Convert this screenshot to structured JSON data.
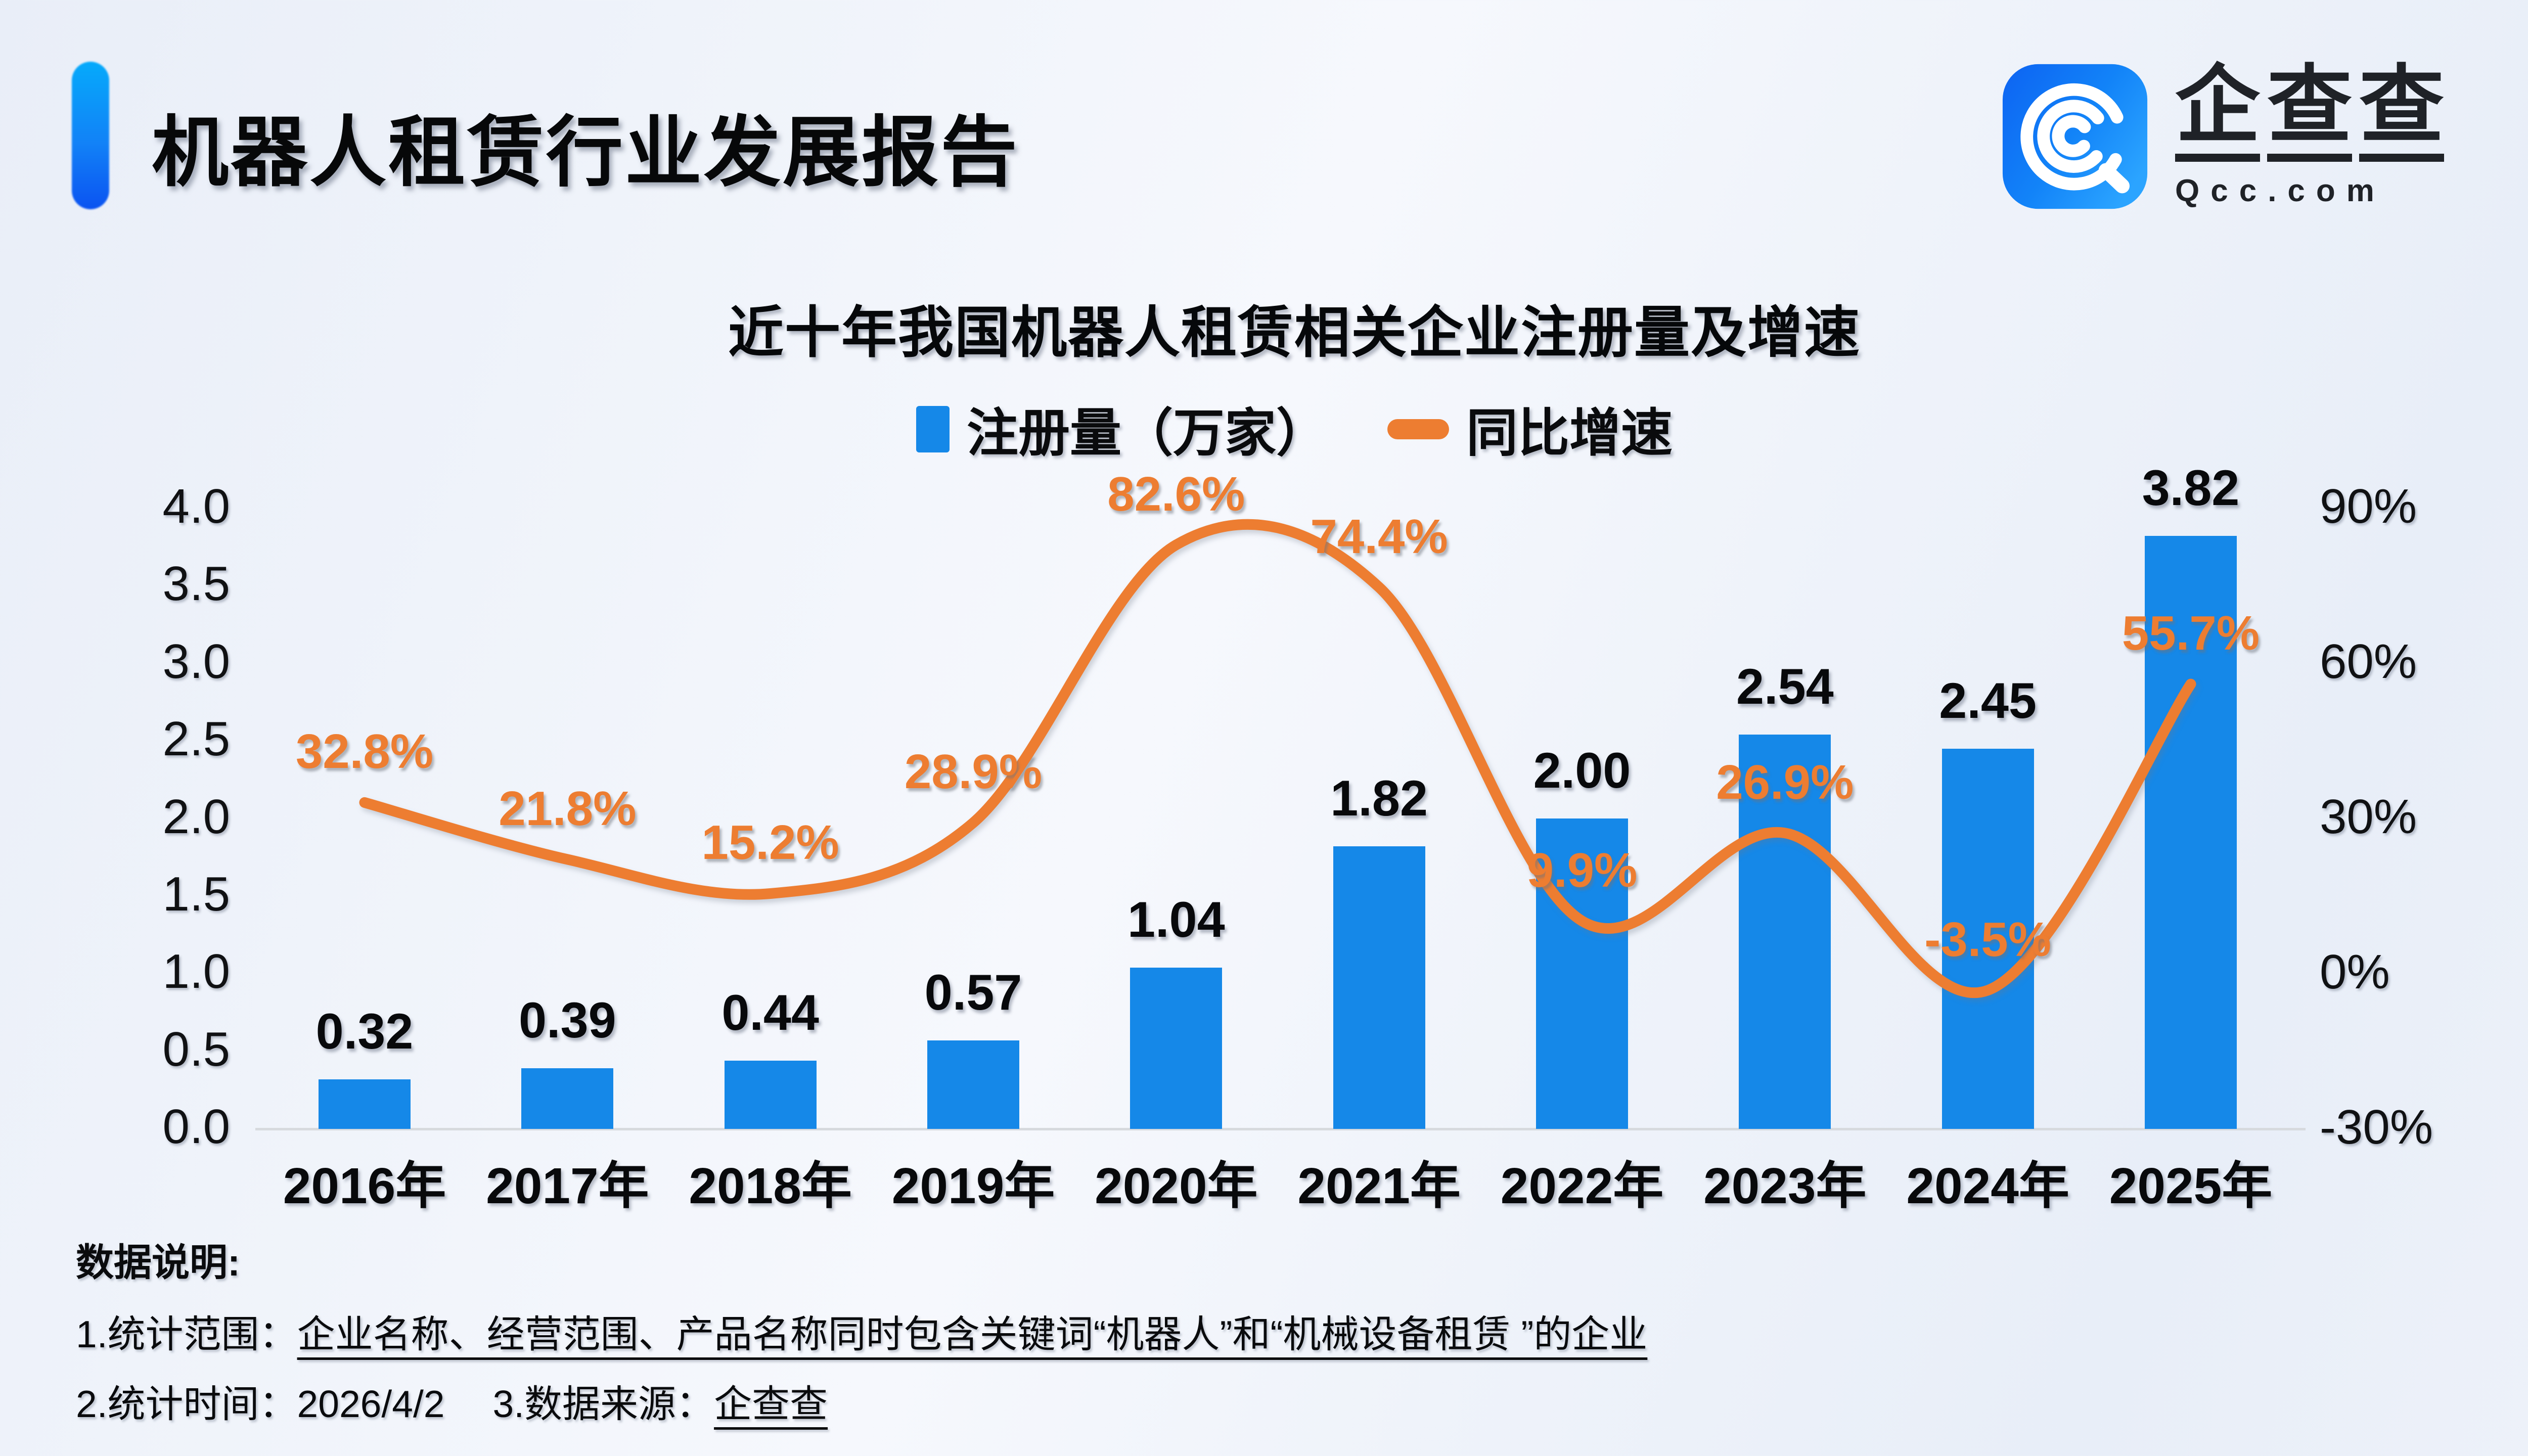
{
  "header": {
    "title": "机器人租赁行业发展报告"
  },
  "logo": {
    "icon": "qcc-spiral-icon",
    "chars": [
      "企",
      "查",
      "查"
    ],
    "domain": "Qcc.com"
  },
  "chart_data": {
    "type": "bar+line combo",
    "title": "近十年我国机器人租赁相关企业注册量及增速",
    "categories": [
      "2016年",
      "2017年",
      "2018年",
      "2019年",
      "2020年",
      "2021年",
      "2022年",
      "2023年",
      "2024年",
      "2025年"
    ],
    "series": [
      {
        "name": "注册量（万家）",
        "type": "bar",
        "axis": "left",
        "color": "#1588e8",
        "values": [
          0.32,
          0.39,
          0.44,
          0.57,
          1.04,
          1.82,
          2.0,
          2.54,
          2.45,
          3.82
        ]
      },
      {
        "name": "同比增速",
        "type": "line",
        "axis": "right",
        "unit": "%",
        "color": "#ed7d31",
        "values": [
          32.8,
          21.8,
          15.2,
          28.9,
          82.6,
          74.4,
          9.9,
          26.9,
          -3.5,
          55.7
        ]
      }
    ],
    "bar_labels": [
      "0.32",
      "0.39",
      "0.44",
      "0.57",
      "1.04",
      "1.82",
      "2.00",
      "2.54",
      "2.45",
      "3.82"
    ],
    "line_labels": [
      "32.8%",
      "21.8%",
      "15.2%",
      "28.9%",
      "82.6%",
      "74.4%",
      "9.9%",
      "26.9%",
      "-3.5%",
      "55.7%"
    ],
    "left_axis": {
      "ticks": [
        "4.0",
        "3.5",
        "3.0",
        "2.5",
        "2.0",
        "1.5",
        "1.0",
        "0.5",
        "0.0"
      ],
      "min": 0,
      "max": 4
    },
    "right_axis": {
      "ticks": [
        "90%",
        "60%",
        "30%",
        "0%",
        "-30%"
      ],
      "min": -30,
      "max": 90
    },
    "grid": "off",
    "legend_position": "top-center"
  },
  "colors": {
    "bar": "#1588e8",
    "line": "#ed7d31",
    "axis_line": "#d7dade",
    "accent_top": "#06aafb",
    "accent_bottom": "#0b53f1",
    "background": "#eef2f9",
    "text": "#0a0b0d"
  },
  "notes": {
    "heading": "数据说明:",
    "line1_prefix": "1.统计范围：",
    "line1_underlined": "企业名称、经营范围、产品名称同时包含关键词“机器人”和“机械设备租赁 ”的企业",
    "line2_a": "2.统计时间：2026/4/2",
    "line2_b_prefix": "3.数据来源：",
    "line2_b_underlined": "企查查"
  }
}
